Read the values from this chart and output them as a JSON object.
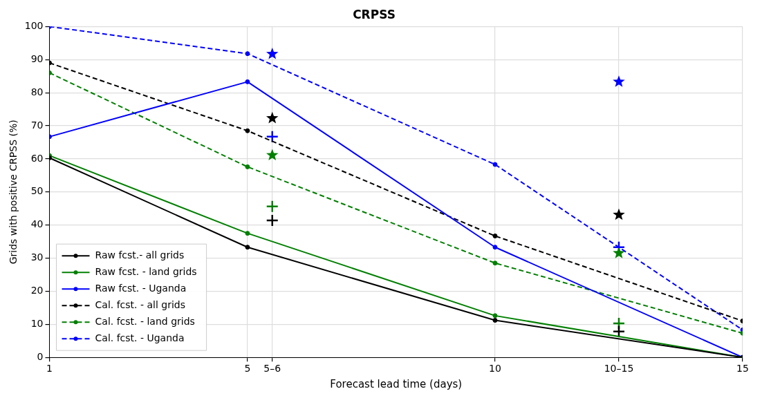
{
  "chart_data": {
    "type": "line",
    "title": "CRPSS",
    "xlabel": "Forecast lead time (days)",
    "ylabel": "Grids with positive CRPSS (%)",
    "xlim": [
      1,
      15
    ],
    "xticks": [
      1,
      5,
      {
        "value": 5.5,
        "label": "5–6"
      },
      10,
      {
        "value": 12.5,
        "label": "10–15"
      },
      15
    ],
    "ylim": [
      0,
      100
    ],
    "yticks": [
      0,
      10,
      20,
      30,
      40,
      50,
      60,
      70,
      80,
      90,
      100
    ],
    "grid": true,
    "legend": "bottom left",
    "marker": "circle",
    "series": [
      {
        "name": "Raw fcst.- all grids",
        "color": "#000000",
        "x": [
          1,
          5,
          10,
          15
        ],
        "values": [
          60.3,
          33.3,
          11.2,
          0
        ],
        "line_style": "solid"
      },
      {
        "name": "Raw fcst. - land grids",
        "color": "#008000",
        "x": [
          1,
          5,
          10,
          15
        ],
        "values": [
          61,
          37.5,
          12.6,
          0
        ],
        "line_style": "solid"
      },
      {
        "name": "Raw fcst. - Uganda",
        "color": "#0000ff",
        "x": [
          1,
          5,
          10,
          15
        ],
        "values": [
          66.7,
          83.3,
          33.3,
          0
        ],
        "line_style": "solid"
      },
      {
        "name": "Cal. fcst. - all grids",
        "color": "#000000",
        "x": [
          1,
          5,
          10,
          15
        ],
        "values": [
          89,
          68.5,
          36.7,
          11
        ],
        "line_style": "dashed"
      },
      {
        "name": "Cal. fcst. - land grids",
        "color": "#008000",
        "x": [
          1,
          5,
          10,
          15
        ],
        "values": [
          86,
          57.6,
          28.5,
          7.3
        ],
        "line_style": "dashed"
      },
      {
        "name": "Cal. fcst. - Uganda",
        "color": "#0000ff",
        "x": [
          1,
          5,
          10,
          15
        ],
        "values": [
          100,
          91.8,
          58.3,
          8.3
        ],
        "line_style": "dashed"
      },
      {
        "type": "scatter",
        "marker": "star",
        "color": "#000000",
        "x": [
          5.5,
          12.5
        ],
        "values": [
          72.3,
          43.1
        ]
      },
      {
        "type": "scatter",
        "marker": "star",
        "color": "#008000",
        "x": [
          5.5,
          12.5
        ],
        "values": [
          61.1,
          31.5
        ]
      },
      {
        "type": "scatter",
        "marker": "star",
        "color": "#0000ff",
        "x": [
          5.5,
          12.5
        ],
        "values": [
          91.7,
          83.3
        ]
      },
      {
        "type": "scatter",
        "marker": "cross",
        "color": "#000000",
        "x": [
          5.5,
          12.5
        ],
        "values": [
          41.4,
          7.8
        ]
      },
      {
        "type": "scatter",
        "marker": "cross",
        "color": "#008000",
        "x": [
          5.5,
          12.5
        ],
        "values": [
          45.6,
          10.3
        ]
      },
      {
        "type": "scatter",
        "marker": "cross",
        "color": "#0000ff",
        "x": [
          5.5,
          12.5
        ],
        "values": [
          66.7,
          33.3
        ]
      }
    ]
  }
}
